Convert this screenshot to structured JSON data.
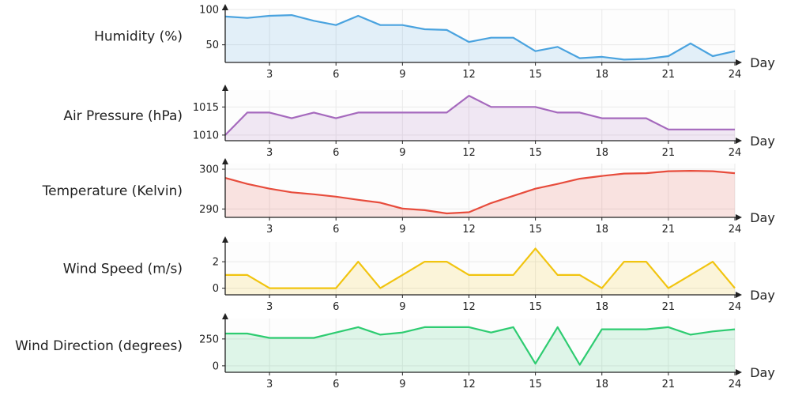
{
  "chart_data": [
    {
      "type": "area",
      "ylabel": "Humidity (%)",
      "xlabel": "Day",
      "color": "#4aa3df",
      "x": [
        1,
        2,
        3,
        4,
        5,
        6,
        7,
        8,
        9,
        10,
        11,
        12,
        13,
        14,
        15,
        16,
        17,
        18,
        19,
        20,
        21,
        22,
        23,
        24
      ],
      "values": [
        90,
        88,
        91,
        92,
        84,
        78,
        91,
        78,
        78,
        72,
        71,
        54,
        60,
        60,
        41,
        47,
        31,
        33,
        29,
        30,
        34,
        52,
        34,
        41
      ],
      "xlim": [
        1,
        24
      ],
      "ylim": [
        25,
        100
      ],
      "xticks": [
        3,
        6,
        9,
        12,
        15,
        18,
        21,
        24
      ],
      "yticks": [
        50,
        100
      ],
      "grid": true
    },
    {
      "type": "area",
      "ylabel": "Air Pressure (hPa)",
      "xlabel": "Day",
      "color": "#a569bd",
      "x": [
        1,
        2,
        3,
        4,
        5,
        6,
        7,
        8,
        9,
        10,
        11,
        12,
        13,
        14,
        15,
        16,
        17,
        18,
        19,
        20,
        21,
        22,
        23,
        24
      ],
      "values": [
        1010,
        1014,
        1014,
        1013,
        1014,
        1013,
        1014,
        1014,
        1014,
        1014,
        1014,
        1017,
        1015,
        1015,
        1015,
        1014,
        1014,
        1013,
        1013,
        1013,
        1011,
        1011,
        1011,
        1011
      ],
      "xlim": [
        1,
        24
      ],
      "ylim": [
        1009,
        1018
      ],
      "xticks": [
        3,
        6,
        9,
        12,
        15,
        18,
        21,
        24
      ],
      "yticks": [
        1010,
        1015
      ],
      "grid": true
    },
    {
      "type": "area",
      "ylabel": "Temperature (Kelvin)",
      "xlabel": "Day",
      "color": "#e74c3c",
      "x": [
        1,
        2,
        3,
        4,
        5,
        6,
        7,
        8,
        9,
        10,
        11,
        12,
        13,
        14,
        15,
        16,
        17,
        18,
        19,
        20,
        21,
        22,
        23,
        24
      ],
      "values": [
        297.8,
        296.3,
        295.1,
        294.2,
        293.7,
        293.1,
        292.3,
        291.6,
        290.1,
        289.7,
        288.9,
        289.2,
        291.5,
        293.3,
        295.1,
        296.3,
        297.6,
        298.3,
        298.9,
        299,
        299.5,
        299.6,
        299.5,
        299
      ],
      "xlim": [
        1,
        24
      ],
      "ylim": [
        287.9,
        301.4
      ],
      "xticks": [
        3,
        6,
        9,
        12,
        15,
        18,
        21,
        24
      ],
      "yticks": [
        290,
        300
      ],
      "grid": true
    },
    {
      "type": "area",
      "ylabel": "Wind Speed (m/s)",
      "xlabel": "Day",
      "color": "#f1c40f",
      "x": [
        1,
        2,
        3,
        4,
        5,
        6,
        7,
        8,
        9,
        10,
        11,
        12,
        13,
        14,
        15,
        16,
        17,
        18,
        19,
        20,
        21,
        22,
        23,
        24
      ],
      "values": [
        1,
        1,
        0,
        0,
        0,
        0,
        2,
        0,
        1,
        2,
        2,
        1,
        1,
        1,
        3,
        1,
        1,
        0,
        2,
        2,
        0,
        1,
        2,
        0
      ],
      "xlim": [
        1,
        24
      ],
      "ylim": [
        -0.5,
        3.5
      ],
      "xticks": [
        3,
        6,
        9,
        12,
        15,
        18,
        21,
        24
      ],
      "yticks": [
        0,
        2
      ],
      "grid": true
    },
    {
      "type": "area",
      "ylabel": "Wind Direction (degrees)",
      "xlabel": "Day",
      "color": "#2ecc71",
      "x": [
        1,
        2,
        3,
        4,
        5,
        6,
        7,
        8,
        9,
        10,
        11,
        12,
        13,
        14,
        15,
        16,
        17,
        18,
        19,
        20,
        21,
        22,
        23,
        24
      ],
      "values": [
        300,
        300,
        260,
        260,
        260,
        310,
        360,
        290,
        310,
        360,
        360,
        360,
        310,
        360,
        20,
        360,
        10,
        340,
        340,
        340,
        360,
        290,
        320,
        340
      ],
      "xlim": [
        1,
        24
      ],
      "ylim": [
        -60,
        440
      ],
      "xticks": [
        3,
        6,
        9,
        12,
        15,
        18,
        21,
        24
      ],
      "yticks": [
        0,
        250
      ],
      "grid": true
    }
  ]
}
